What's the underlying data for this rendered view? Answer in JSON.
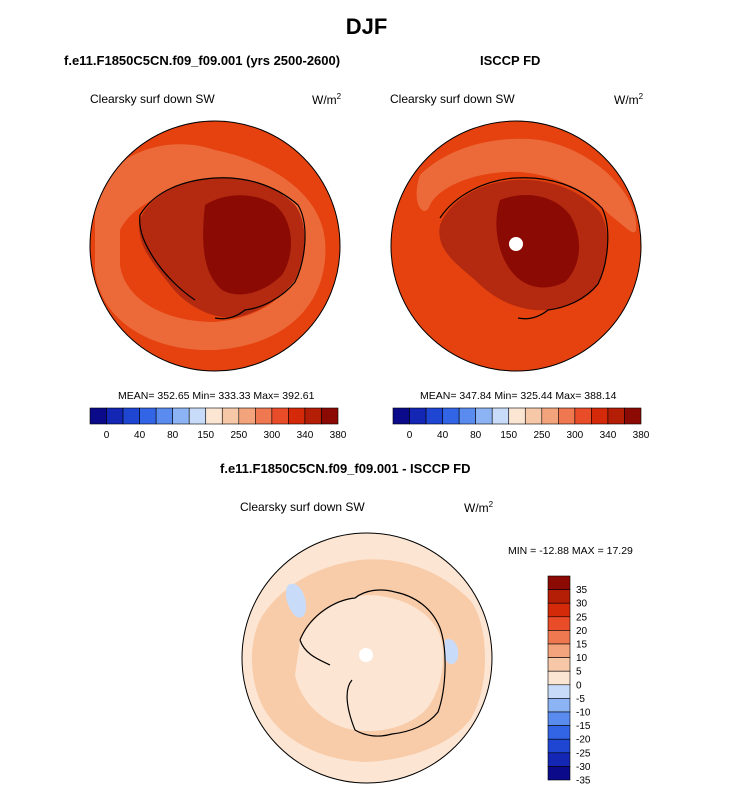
{
  "season": "DJF",
  "panels": [
    {
      "title": "f.e11.F1850C5CN.f09_f09.001 (yrs 2500-2600)",
      "variable": "Clearsky surf down SW",
      "units": "W/m",
      "units_exp": "2",
      "stats": "MEAN= 352.65  Min= 333.33  Max= 392.61"
    },
    {
      "title": "ISCCP FD",
      "variable": "Clearsky surf down SW",
      "units": "W/m",
      "units_exp": "2",
      "stats": "MEAN= 347.84  Min= 325.44  Max= 388.14"
    }
  ],
  "abs_colorbar": {
    "colors": [
      "#0a0a8a",
      "#1426b4",
      "#1e46d2",
      "#3264e6",
      "#5a8cf0",
      "#8cb4f5",
      "#c8dcfa",
      "#fbe6d4",
      "#f7c8a8",
      "#f4a47c",
      "#f07850",
      "#e94c28",
      "#d42a0a",
      "#b41e06",
      "#8c0a04"
    ],
    "tick_labels": [
      "0",
      "40",
      "80",
      "150",
      "250",
      "300",
      "340",
      "380"
    ]
  },
  "diff_panel": {
    "title": "f.e11.F1850C5CN.f09_f09.001 - ISCCP FD",
    "variable": "Clearsky surf down SW",
    "units": "W/m",
    "units_exp": "2",
    "stats": "MIN = -12.88  MAX =  17.29"
  },
  "diff_colorbar": {
    "colors": [
      "#8c0a04",
      "#b41e06",
      "#d42a0a",
      "#e94c28",
      "#f07850",
      "#f4a47c",
      "#f7c8a8",
      "#fbe6d4",
      "#c8dcfa",
      "#8cb4f5",
      "#5a8cf0",
      "#3264e6",
      "#1e46d2",
      "#1426b4",
      "#0a0a8a"
    ],
    "tick_labels": [
      "35",
      "30",
      "25",
      "20",
      "15",
      "10",
      "5",
      "0",
      "-5",
      "-10",
      "-15",
      "-20",
      "-25",
      "-30",
      "-35"
    ]
  },
  "map_colors": {
    "ocean_abs": "#e5420f",
    "ring_abs": "#ec6a3a",
    "land_mid": "#b42a10",
    "land_high": "#8c0a04",
    "diff_base": "#fce5d2",
    "diff_warm": "#f8cba9",
    "diff_cool": "#c8dcfa",
    "pole": "#ffffff"
  }
}
